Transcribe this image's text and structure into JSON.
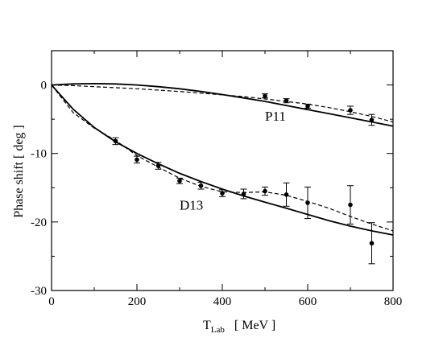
{
  "chart_data": {
    "type": "line",
    "title": "",
    "xlabel_main": "T",
    "xlabel_sub": "Lab",
    "xlabel_unit": "[ MeV ]",
    "ylabel": "Phase shift   [ deg ]",
    "xlim": [
      0,
      800
    ],
    "ylim": [
      -30,
      5
    ],
    "xticks": [
      0,
      200,
      400,
      600,
      800
    ],
    "yticks": [
      0,
      -10,
      -20,
      -30
    ],
    "grid": false,
    "annotations": [
      {
        "text": "P11",
        "x": 500,
        "y": -5.2
      },
      {
        "text": "D13",
        "x": 300,
        "y": -18.2
      }
    ],
    "series": [
      {
        "style": "solid",
        "x": [
          0,
          50,
          100,
          150,
          200,
          250,
          300,
          350,
          400,
          450,
          500,
          550,
          600,
          650,
          700,
          750,
          800
        ],
        "values": [
          0,
          0.15,
          0.2,
          0.15,
          0,
          -0.25,
          -0.55,
          -0.95,
          -1.4,
          -1.9,
          -2.4,
          -3.0,
          -3.6,
          -4.2,
          -4.8,
          -5.4,
          -6.0
        ]
      },
      {
        "style": "dashed",
        "x": [
          0,
          50,
          100,
          150,
          200,
          250,
          300,
          350,
          400,
          450,
          500,
          550,
          600,
          650,
          700,
          750,
          800
        ],
        "values": [
          0,
          -0.1,
          -0.25,
          -0.4,
          -0.55,
          -0.75,
          -0.95,
          -1.2,
          -1.45,
          -1.7,
          -2.05,
          -2.4,
          -2.8,
          -3.3,
          -3.9,
          -4.6,
          -5.4
        ]
      },
      {
        "style": "solid",
        "x": [
          0,
          50,
          100,
          150,
          200,
          250,
          300,
          350,
          400,
          450,
          500,
          550,
          600,
          650,
          700,
          750,
          800
        ],
        "values": [
          0,
          -3.5,
          -6.2,
          -8.3,
          -10.0,
          -11.5,
          -12.9,
          -14.1,
          -15.2,
          -16.2,
          -17.1,
          -18.0,
          -18.9,
          -19.8,
          -20.6,
          -21.3,
          -21.9
        ]
      },
      {
        "style": "dashed",
        "x": [
          0,
          50,
          100,
          150,
          200,
          250,
          300,
          350,
          400,
          450,
          500,
          550,
          600,
          650,
          700,
          750,
          800
        ],
        "values": [
          0,
          -4.0,
          -6.3,
          -8.1,
          -10.3,
          -12.0,
          -13.6,
          -14.8,
          -15.6,
          -15.7,
          -15.6,
          -16.1,
          -17.0,
          -18.0,
          -19.2,
          -20.3,
          -21.3
        ]
      }
    ],
    "points": [
      {
        "x": 150,
        "y": -8.2,
        "err": 0.5
      },
      {
        "x": 200,
        "y": -10.9,
        "err": 0.5
      },
      {
        "x": 250,
        "y": -11.8,
        "err": 0.5
      },
      {
        "x": 300,
        "y": -14.0,
        "err": 0.4
      },
      {
        "x": 350,
        "y": -14.7,
        "err": 0.5
      },
      {
        "x": 400,
        "y": -15.8,
        "err": 0.5
      },
      {
        "x": 450,
        "y": -15.9,
        "err": 0.7
      },
      {
        "x": 500,
        "y": -15.5,
        "err": 0.6
      },
      {
        "x": 550,
        "y": -16.0,
        "err": 1.7
      },
      {
        "x": 600,
        "y": -17.2,
        "err": 2.3
      },
      {
        "x": 700,
        "y": -17.5,
        "err": 2.8
      },
      {
        "x": 750,
        "y": -23.1,
        "err": 3.0
      },
      {
        "x": 500,
        "y": -1.6,
        "err": 0.3
      },
      {
        "x": 550,
        "y": -2.3,
        "err": 0.3
      },
      {
        "x": 600,
        "y": -3.1,
        "err": 0.3
      },
      {
        "x": 700,
        "y": -3.7,
        "err": 0.6
      },
      {
        "x": 750,
        "y": -5.1,
        "err": 0.8
      }
    ]
  }
}
